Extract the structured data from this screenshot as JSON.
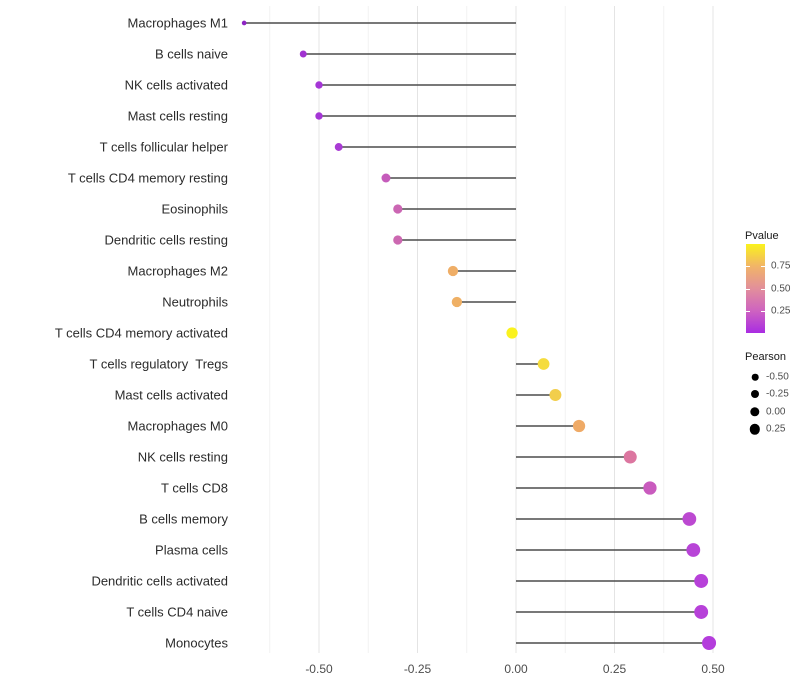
{
  "chart_data": {
    "type": "lollipop",
    "title": "",
    "xlabel": "",
    "ylabel": "",
    "grid": "vertical-only",
    "x_axis": {
      "tick_values": [
        -0.5,
        -0.25,
        0,
        0.25,
        0.5
      ],
      "tick_labels": [
        "-0.50",
        "-0.25",
        "0.00",
        "0.25",
        "0.50"
      ],
      "minor_grid_values": [
        -0.625,
        -0.375,
        -0.125,
        0.125,
        0.375
      ],
      "range": [
        -0.74,
        0.55
      ]
    },
    "rows": [
      {
        "label": "Macrophages M1",
        "pearson": -0.69,
        "pvalue": 0.01,
        "color": "#8E24C4"
      },
      {
        "label": "B cells naive",
        "pearson": -0.54,
        "pvalue": 0.07,
        "color": "#A133D1"
      },
      {
        "label": "NK cells activated",
        "pearson": -0.5,
        "pvalue": 0.09,
        "color": "#A536D6"
      },
      {
        "label": "Mast cells resting",
        "pearson": -0.5,
        "pvalue": 0.09,
        "color": "#A536D6"
      },
      {
        "label": "T cells follicular helper",
        "pearson": -0.45,
        "pvalue": 0.11,
        "color": "#A93BD4"
      },
      {
        "label": "T cells CD4 memory resting",
        "pearson": -0.33,
        "pvalue": 0.33,
        "color": "#C55CBB"
      },
      {
        "label": "Eosinophils",
        "pearson": -0.3,
        "pvalue": 0.37,
        "color": "#CB66B3"
      },
      {
        "label": "Dendritic cells resting",
        "pearson": -0.3,
        "pvalue": 0.37,
        "color": "#CC68B1"
      },
      {
        "label": "Macrophages M2",
        "pearson": -0.16,
        "pvalue": 0.7,
        "color": "#EFAE67"
      },
      {
        "label": "Neutrophils",
        "pearson": -0.15,
        "pvalue": 0.7,
        "color": "#EFB065"
      },
      {
        "label": "T cells CD4 memory activated",
        "pearson": -0.01,
        "pvalue": 0.97,
        "color": "#FAF21E"
      },
      {
        "label": "T cells regulatory  Tregs",
        "pearson": 0.07,
        "pvalue": 0.86,
        "color": "#F5DC3D"
      },
      {
        "label": "Mast cells activated",
        "pearson": 0.1,
        "pvalue": 0.81,
        "color": "#F2CE4B"
      },
      {
        "label": "Macrophages M0",
        "pearson": 0.16,
        "pvalue": 0.7,
        "color": "#EFAA66"
      },
      {
        "label": "NK cells resting",
        "pearson": 0.29,
        "pvalue": 0.45,
        "color": "#DC76A0"
      },
      {
        "label": "T cells CD8",
        "pearson": 0.34,
        "pvalue": 0.31,
        "color": "#C95BBE"
      },
      {
        "label": "B cells memory",
        "pearson": 0.44,
        "pvalue": 0.19,
        "color": "#BC49D1"
      },
      {
        "label": "Plasma cells",
        "pearson": 0.45,
        "pvalue": 0.17,
        "color": "#B844D7"
      },
      {
        "label": "Dendritic cells activated",
        "pearson": 0.47,
        "pvalue": 0.15,
        "color": "#B741D9"
      },
      {
        "label": "T cells CD4 naive",
        "pearson": 0.47,
        "pvalue": 0.15,
        "color": "#B741D9"
      },
      {
        "label": "Monocytes",
        "pearson": 0.49,
        "pvalue": 0.13,
        "color": "#B43DDC"
      }
    ],
    "legend_pvalue": {
      "title": "Pvalue",
      "tick_labels": [
        "0.75",
        "0.50",
        "0.25"
      ],
      "tick_values": [
        0.75,
        0.5,
        0.25
      ],
      "gradient_bottom_to_top": [
        "#A92CE2",
        "#CE63C0",
        "#E28F9B",
        "#F1B468",
        "#FAF21D"
      ]
    },
    "legend_pearson": {
      "title": "Pearson",
      "items": [
        {
          "label": "-0.50",
          "radius": 3.3
        },
        {
          "label": "-0.25",
          "radius": 4.0
        },
        {
          "label": "0.00",
          "radius": 4.7
        },
        {
          "label": "0.25",
          "radius": 5.2
        }
      ]
    },
    "colors": {
      "stem": "#4B4B4B",
      "major_grid": "#E4E4E4",
      "minor_grid": "#F2F2F2",
      "axis_text": "#4D4D4D",
      "row_label_text": "#2B2B2B",
      "background": "#FFFFFF"
    }
  }
}
